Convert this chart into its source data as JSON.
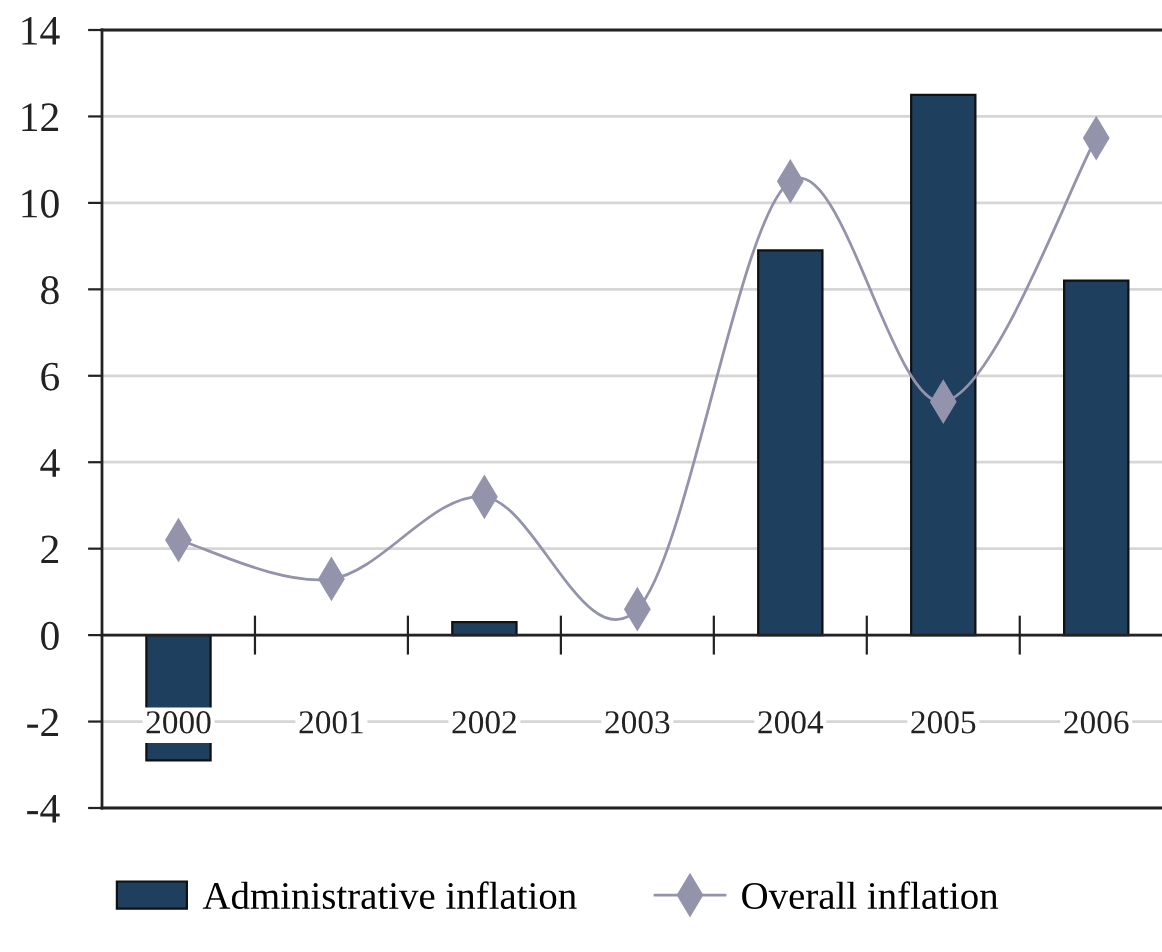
{
  "chart_data": {
    "type": "bar",
    "categories": [
      "2000",
      "2001",
      "2002",
      "2003",
      "2004",
      "2005",
      "2006"
    ],
    "series": [
      {
        "name": "Administrative inflation",
        "color": "#1f3f5f",
        "values": [
          -2.9,
          null,
          0.3,
          null,
          8.9,
          12.5,
          8.2
        ]
      },
      {
        "name": "Overall inflation",
        "type": "line",
        "color": "#9394ab",
        "values": [
          2.2,
          1.3,
          3.2,
          0.6,
          10.5,
          5.4,
          11.5
        ]
      }
    ],
    "ylim": [
      -4,
      14
    ],
    "yticks": [
      -4,
      -2,
      0,
      2,
      4,
      6,
      8,
      10,
      12,
      14
    ],
    "grid": "y",
    "legend": "bottom",
    "marker": "diamond"
  }
}
